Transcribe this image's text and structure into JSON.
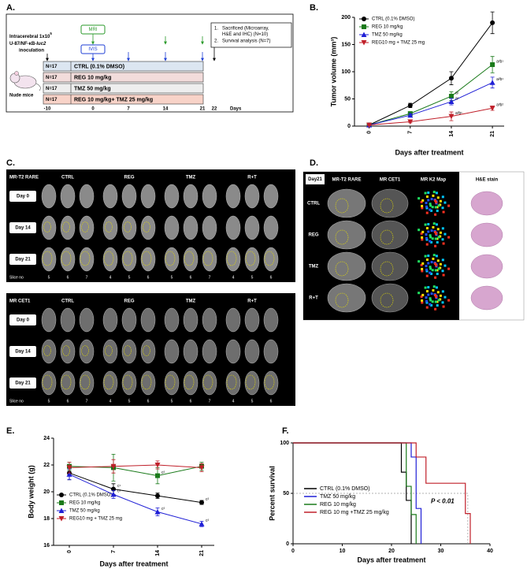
{
  "panel_labels": [
    "A.",
    "B.",
    "C.",
    "D.",
    "E.",
    "F."
  ],
  "protocol": {
    "inoc_line1": "Intracerebral 1x10",
    "inoc_sup": "5",
    "inoc_line2": "U-87/NF-κB-",
    "inoc_italic": "luc2",
    "inoc_line3": "inoculation",
    "mouse": "Nude mice",
    "mri": "MRI",
    "ivis": "IVIS",
    "endpoints": [
      {
        "num": "1.",
        "text": [
          "Sacrificed (Microarray,",
          "H&E and IHC) (N=10)"
        ]
      },
      {
        "num": "2.",
        "text": [
          "Survival analysis (N=7)"
        ]
      }
    ],
    "groups": [
      {
        "n": "N=17",
        "label": "CTRL (0.1% DMSO)",
        "color": "#dce6f1"
      },
      {
        "n": "N=17",
        "label": "REG 10 mg/kg",
        "color": "#f2dcdb"
      },
      {
        "n": "N=17",
        "label": "TMZ 50 mg/kg",
        "color": "#eeeeee"
      },
      {
        "n": "N=17",
        "label": "REG 10 mg/kg+ TMZ 25 mg/kg",
        "color": "#f8d3c8"
      }
    ],
    "days": [
      -10,
      0,
      7,
      14,
      21,
      22
    ],
    "days_label": "Days"
  },
  "mri_panels": {
    "titles": [
      "MR-T2 RARE",
      "MR CET1"
    ],
    "groups": [
      "CTRL",
      "REG",
      "TMZ",
      "R+T"
    ],
    "days": [
      "Day 0",
      "Day 14",
      "Day 21"
    ],
    "slice_label": "Slice no",
    "slices": [
      [
        5,
        6,
        7,
        4,
        5,
        6,
        5,
        6,
        7,
        4,
        5,
        6
      ],
      [
        5,
        6,
        7,
        4,
        5,
        6,
        5,
        6,
        7,
        4,
        5,
        6
      ]
    ]
  },
  "histology": {
    "title": "Day21",
    "columns": [
      "MR-T2 RARE",
      "MR CET1",
      "MR K2 Map",
      "H&E stain"
    ],
    "rows": [
      "CTRL",
      "REG",
      "TMZ",
      "R+T"
    ]
  },
  "chart_data": [
    {
      "type": "line",
      "xlabel": "Days after treatment",
      "ylabel": "Tumor volume (mm³)",
      "x": [
        0,
        7,
        14,
        21
      ],
      "xlim": [
        -2.5,
        23
      ],
      "xticks": [
        0,
        7,
        14,
        21
      ],
      "ylim": [
        0,
        200
      ],
      "yticks": [
        0,
        50,
        100,
        150,
        200
      ],
      "series": [
        {
          "name": "CTRL (0.1% DMSO)",
          "color": "#000000",
          "marker": "circle",
          "values": [
            2,
            38,
            88,
            190
          ],
          "errors": [
            1,
            4,
            12,
            20
          ],
          "point_labels": [
            null,
            null,
            null,
            null
          ]
        },
        {
          "name": "REG 10 mg/kg",
          "color": "#1a7a1a",
          "marker": "square",
          "values": [
            2,
            23,
            55,
            113
          ],
          "errors": [
            1,
            3,
            8,
            15
          ],
          "point_labels": [
            null,
            null,
            "a¹",
            "a²b¹"
          ]
        },
        {
          "name": "TMZ 50 mg/kg",
          "color": "#1f1fd6",
          "marker": "triangle",
          "values": [
            2,
            20,
            45,
            80
          ],
          "errors": [
            1,
            3,
            6,
            10
          ],
          "point_labels": [
            null,
            null,
            "a¹",
            "a²b¹"
          ]
        },
        {
          "name": "REG10 mg + TMZ 25 mg",
          "color": "#c0202a",
          "marker": "triangle-down",
          "values": [
            2,
            8,
            18,
            33
          ],
          "errors": [
            1,
            2,
            8,
            4
          ],
          "point_labels": [
            null,
            null,
            "a²b¹",
            "a³b²"
          ]
        }
      ]
    },
    {
      "type": "line",
      "xlabel": "Days after treatment",
      "ylabel": "Body weight (g)",
      "x": [
        0,
        7,
        14,
        21
      ],
      "xlim": [
        -2.5,
        23
      ],
      "xticks": [
        0,
        7,
        14,
        21
      ],
      "ylim": [
        16,
        24
      ],
      "yticks": [
        16,
        18,
        20,
        22,
        24
      ],
      "series": [
        {
          "name": "CTRL (0.1% DMSO)",
          "color": "#000000",
          "marker": "circle",
          "values": [
            21.4,
            20.2,
            19.7,
            19.2
          ],
          "errors": [
            0.5,
            0.4,
            0.2,
            0.15
          ],
          "point_labels": [
            null,
            "c¹",
            null,
            "c²"
          ]
        },
        {
          "name": "REG 10 mg/kg",
          "color": "#1a7a1a",
          "marker": "square",
          "values": [
            21.9,
            21.8,
            21.2,
            21.9
          ],
          "errors": [
            0.3,
            1.0,
            0.6,
            0.3
          ],
          "point_labels": [
            null,
            null,
            "c²",
            null
          ]
        },
        {
          "name": "TMZ 50 mg/kg",
          "color": "#1f1fd6",
          "marker": "triangle",
          "values": [
            21.3,
            19.8,
            18.5,
            17.6
          ],
          "errors": [
            0.4,
            0.3,
            0.3,
            0.2
          ],
          "point_labels": [
            null,
            "c²",
            "c²",
            "c²"
          ]
        },
        {
          "name": "REG10 mg + TMZ 25 mg",
          "color": "#c0202a",
          "marker": "triangle-down",
          "values": [
            21.8,
            21.9,
            22.0,
            21.8
          ],
          "errors": [
            0.4,
            0.5,
            0.3,
            0.3
          ],
          "point_labels": [
            null,
            null,
            null,
            null
          ]
        }
      ]
    },
    {
      "type": "step",
      "xlabel": "Days after treatment",
      "ylabel": "Percent survival",
      "xlim": [
        0,
        40
      ],
      "xticks": [
        0,
        10,
        20,
        30,
        40
      ],
      "ylim": [
        0,
        100
      ],
      "yticks": [
        0,
        50,
        100
      ],
      "ref_y": 50,
      "ref_x": [
        24,
        35.5
      ],
      "annotation": "P < 0.01",
      "series": [
        {
          "name": "CTRL (0.1% DMSO)",
          "color": "#000000",
          "x": [
            0,
            22,
            22,
            23,
            23,
            24,
            24
          ],
          "values": [
            100,
            100,
            71,
            71,
            43,
            43,
            0
          ]
        },
        {
          "name": "TMZ 50 mg/kg",
          "color": "#1f1fd6",
          "x": [
            0,
            24,
            24,
            25,
            25,
            26,
            26
          ],
          "values": [
            100,
            100,
            86,
            86,
            35,
            35,
            0
          ]
        },
        {
          "name": "REG 10 mg/kg",
          "color": "#1a7a1a",
          "x": [
            0,
            23,
            23,
            24,
            24,
            25,
            25
          ],
          "values": [
            100,
            100,
            57,
            57,
            29,
            29,
            0
          ]
        },
        {
          "name": "REG 10 mg +TMZ 25 mg/kg",
          "color": "#c0202a",
          "x": [
            0,
            25,
            25,
            27,
            27,
            35,
            35,
            36,
            36
          ],
          "values": [
            100,
            100,
            86,
            86,
            60,
            60,
            30,
            30,
            0
          ]
        }
      ]
    }
  ]
}
